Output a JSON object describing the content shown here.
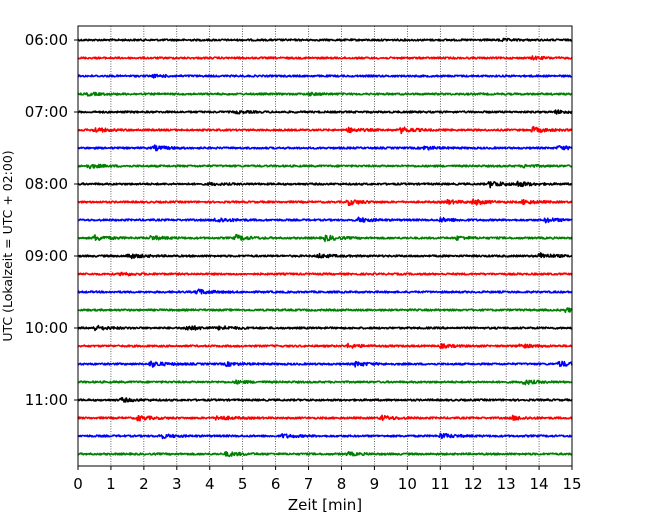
{
  "chart_data": {
    "type": "line",
    "xlabel": "Zeit  [min]",
    "ylabel": "UTC (Lokalzeit = UTC + 02:00)",
    "xlim": [
      0,
      15
    ],
    "x_ticks": [
      "0",
      "1",
      "2",
      "3",
      "4",
      "5",
      "6",
      "7",
      "8",
      "9",
      "10",
      "11",
      "12",
      "13",
      "14",
      "15"
    ],
    "y_tick_labels": [
      "06:00",
      "07:00",
      "08:00",
      "09:00",
      "10:00",
      "11:00"
    ],
    "grid_x": true,
    "trace_colors": [
      "#000000",
      "#ff0000",
      "#0000ff",
      "#008000"
    ],
    "traces": [
      {
        "start": "06:00",
        "events": [
          [
            12.8,
            1
          ]
        ]
      },
      {
        "start": "06:15",
        "events": [
          [
            13.8,
            1.2
          ]
        ]
      },
      {
        "start": "06:30",
        "events": [
          [
            2.3,
            1
          ]
        ]
      },
      {
        "start": "06:45",
        "events": [
          [
            0.3,
            1.2
          ],
          [
            7.0,
            1
          ]
        ]
      },
      {
        "start": "07:00",
        "events": [
          [
            4.8,
            1
          ],
          [
            14.5,
            1.4
          ]
        ]
      },
      {
        "start": "07:15",
        "events": [
          [
            0.5,
            2.2
          ],
          [
            8.2,
            2
          ],
          [
            9.8,
            2.8
          ],
          [
            13.8,
            2.6
          ]
        ]
      },
      {
        "start": "07:30",
        "events": [
          [
            2.3,
            2.2
          ],
          [
            10.5,
            1.6
          ],
          [
            14.6,
            1.8
          ]
        ]
      },
      {
        "start": "07:45",
        "events": [
          [
            0.3,
            2
          ],
          [
            13.5,
            1.2
          ]
        ]
      },
      {
        "start": "08:00",
        "events": [
          [
            4.0,
            1
          ],
          [
            12.5,
            3
          ],
          [
            13.3,
            2.4
          ]
        ]
      },
      {
        "start": "08:15",
        "events": [
          [
            8.2,
            2.6
          ],
          [
            11.2,
            1.8
          ],
          [
            12.0,
            2.4
          ],
          [
            13.5,
            2
          ]
        ]
      },
      {
        "start": "08:30",
        "events": [
          [
            4.2,
            2.4
          ],
          [
            8.5,
            2.2
          ],
          [
            11.0,
            1.8
          ],
          [
            14.2,
            2
          ]
        ]
      },
      {
        "start": "08:45",
        "events": [
          [
            0.5,
            2.6
          ],
          [
            2.2,
            1.8
          ],
          [
            4.8,
            2.6
          ],
          [
            7.5,
            2.6
          ],
          [
            11.5,
            1.6
          ]
        ]
      },
      {
        "start": "09:00",
        "events": [
          [
            1.5,
            2.4
          ],
          [
            7.3,
            1.8
          ],
          [
            14.0,
            2.8
          ]
        ]
      },
      {
        "start": "09:15",
        "events": [
          [
            1.3,
            1.6
          ]
        ]
      },
      {
        "start": "09:30",
        "events": [
          [
            3.6,
            2.6
          ]
        ]
      },
      {
        "start": "09:45",
        "events": [
          [
            14.8,
            1.8
          ]
        ]
      },
      {
        "start": "10:00",
        "events": [
          [
            0.5,
            2.2
          ],
          [
            3.3,
            2.4
          ],
          [
            4.3,
            1.8
          ]
        ]
      },
      {
        "start": "10:15",
        "events": [
          [
            8.2,
            1.8
          ],
          [
            11.0,
            1.6
          ],
          [
            13.4,
            1.8
          ]
        ]
      },
      {
        "start": "10:30",
        "events": [
          [
            2.2,
            2.8
          ],
          [
            4.5,
            1.6
          ],
          [
            8.4,
            2.2
          ],
          [
            14.6,
            2.6
          ]
        ]
      },
      {
        "start": "10:45",
        "events": [
          [
            4.8,
            1.2
          ],
          [
            13.5,
            2.2
          ]
        ]
      },
      {
        "start": "11:00",
        "events": [
          [
            1.3,
            1.8
          ]
        ]
      },
      {
        "start": "11:15",
        "events": [
          [
            1.8,
            2.4
          ],
          [
            4.2,
            2.2
          ],
          [
            9.2,
            2.2
          ],
          [
            13.2,
            1.8
          ]
        ]
      },
      {
        "start": "11:30",
        "events": [
          [
            2.5,
            2
          ],
          [
            6.2,
            1.8
          ],
          [
            11.0,
            2.4
          ]
        ]
      },
      {
        "start": "11:45",
        "events": [
          [
            4.5,
            2.2
          ],
          [
            8.2,
            1.4
          ]
        ]
      }
    ]
  }
}
